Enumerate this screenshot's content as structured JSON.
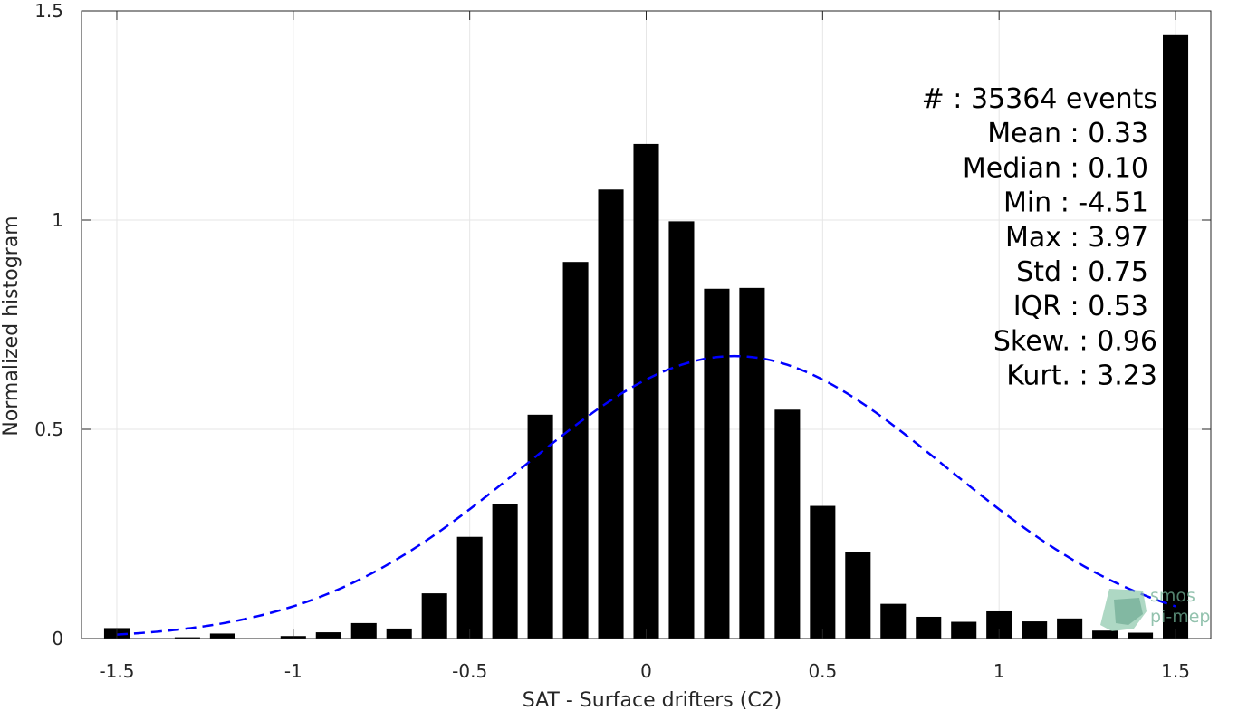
{
  "chart_data": {
    "type": "bar",
    "xlabel": "SAT - Surface drifters (C2)",
    "ylabel": "Normalized histogram",
    "xlim": [
      -1.6,
      1.6
    ],
    "ylim": [
      0,
      1.5
    ],
    "xticks": [
      "-1.5",
      "-1",
      "-0.5",
      "0",
      "0.5",
      "1",
      "1.5"
    ],
    "yticks": [
      "0",
      "0.5",
      "1",
      "1.5"
    ],
    "grid": true,
    "bar_color": "#000000",
    "bin_centers": [
      -1.5,
      -1.4,
      -1.3,
      -1.2,
      -1.1,
      -1.0,
      -0.9,
      -0.8,
      -0.7,
      -0.6,
      -0.5,
      -0.4,
      -0.3,
      -0.2,
      -0.1,
      0.0,
      0.1,
      0.2,
      0.3,
      0.4,
      0.5,
      0.6,
      0.7,
      0.8,
      0.9,
      1.0,
      1.1,
      1.2,
      1.3,
      1.4,
      1.5
    ],
    "values": [
      0.025,
      0.0,
      0.003,
      0.012,
      0.0,
      0.006,
      0.015,
      0.037,
      0.024,
      0.108,
      0.243,
      0.322,
      0.535,
      0.9,
      1.073,
      1.182,
      0.997,
      0.836,
      0.838,
      0.547,
      0.317,
      0.207,
      0.083,
      0.052,
      0.04,
      0.065,
      0.041,
      0.048,
      0.019,
      0.014,
      1.442
    ],
    "fit_curve": {
      "style": "dashed",
      "color": "#0000ff",
      "mean": 0.25,
      "std": 0.6,
      "peak": 0.675
    },
    "stats": [
      "#  : 35364 events",
      "Mean : 0.33",
      "Median : 0.10",
      "Min : -4.51",
      "Max : 3.97",
      "Std : 0.75",
      "IQR : 0.53",
      "Skew. : 0.96",
      "Kurt. : 3.23"
    ]
  },
  "logo": {
    "line1": "smos",
    "line2": "pi-mep"
  }
}
